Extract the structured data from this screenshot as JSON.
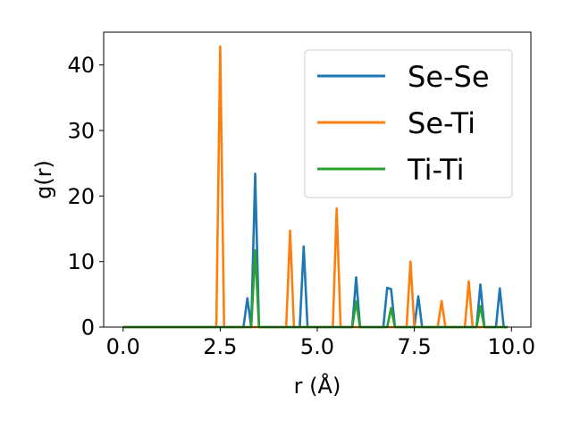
{
  "chart_data": {
    "type": "line",
    "xlabel": "r (Å)",
    "ylabel": "g(r)",
    "xlim": [
      -0.5,
      10.5
    ],
    "ylim": [
      0,
      45
    ],
    "xticks": [
      0.0,
      2.5,
      5.0,
      7.5,
      10.0
    ],
    "xtick_labels": [
      "0.0",
      "2.5",
      "5.0",
      "7.5",
      "10.0"
    ],
    "yticks": [
      0,
      10,
      20,
      30,
      40
    ],
    "ytick_labels": [
      "0",
      "10",
      "20",
      "30",
      "40"
    ],
    "grid": false,
    "legend": "top-right",
    "series": [
      {
        "name": "Se-Se",
        "color": "#1f77b4",
        "x": [
          0.0,
          3.1,
          3.2,
          3.3,
          3.4,
          3.5,
          4.55,
          4.65,
          4.75,
          5.9,
          6.0,
          6.1,
          6.7,
          6.8,
          6.9,
          7.0,
          7.5,
          7.6,
          7.7,
          9.1,
          9.2,
          9.3,
          9.6,
          9.7,
          9.8,
          9.9
        ],
        "y": [
          0,
          0,
          4.4,
          0,
          23.4,
          0,
          0,
          12.3,
          0,
          0,
          7.6,
          0,
          0,
          6.0,
          5.8,
          0,
          0,
          4.7,
          0,
          0,
          6.5,
          0,
          0,
          5.9,
          0,
          0
        ]
      },
      {
        "name": "Se-Ti",
        "color": "#ff7f0e",
        "x": [
          0.0,
          2.4,
          2.5,
          2.6,
          4.2,
          4.3,
          4.4,
          5.4,
          5.5,
          5.6,
          7.3,
          7.4,
          7.5,
          8.1,
          8.2,
          8.3,
          8.8,
          8.9,
          9.0,
          9.9
        ],
        "y": [
          0,
          0,
          42.8,
          0,
          0,
          14.7,
          0,
          0,
          18.1,
          0,
          0,
          10.0,
          0,
          0,
          4.0,
          0,
          0,
          7.0,
          0,
          0
        ]
      },
      {
        "name": "Ti-Ti",
        "color": "#2ca02c",
        "x": [
          0.0,
          3.3,
          3.4,
          3.5,
          5.9,
          6.0,
          6.1,
          6.8,
          6.9,
          7.0,
          9.1,
          9.2,
          9.3,
          9.9
        ],
        "y": [
          0,
          0,
          11.7,
          0,
          0,
          3.9,
          0,
          0,
          2.9,
          0,
          0,
          3.2,
          0,
          0
        ]
      }
    ]
  }
}
